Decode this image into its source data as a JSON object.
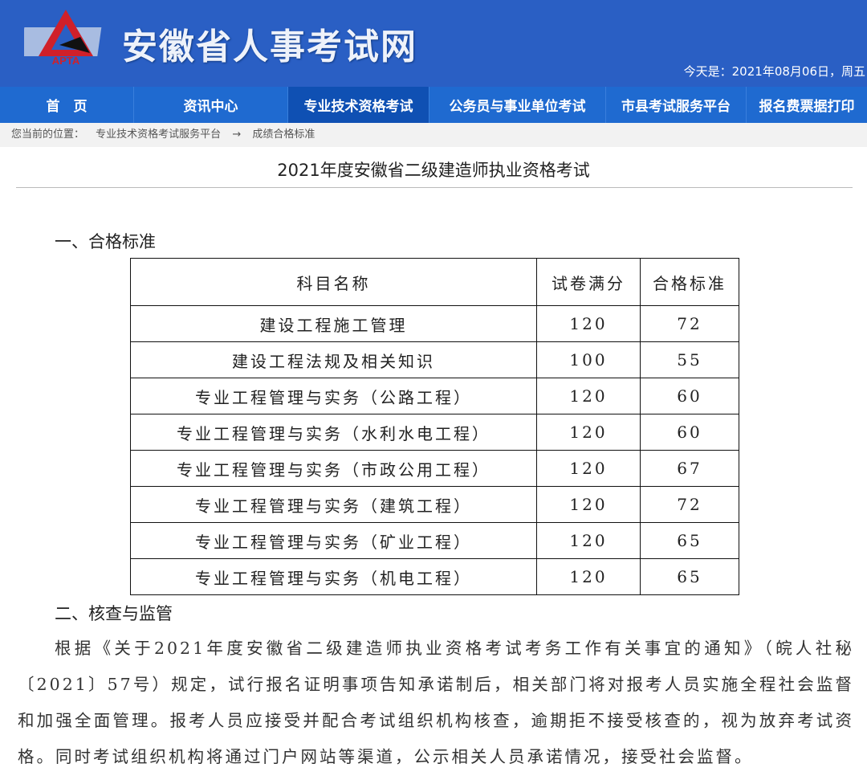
{
  "header": {
    "site_title": "安徽省人事考试网",
    "logo_text": "APTA",
    "date": "今天是：2021年08月06日，周五"
  },
  "nav": [
    {
      "label": "首　页"
    },
    {
      "label": "资讯中心"
    },
    {
      "label": "专业技术资格考试",
      "active": true
    },
    {
      "label": "公务员与事业单位考试"
    },
    {
      "label": "市县考试服务平台"
    },
    {
      "label": "报名费票据打印"
    }
  ],
  "breadcrumb": {
    "prefix": "您当前的位置：",
    "items": [
      "专业技术资格考试服务平台",
      "成绩合格标准"
    ],
    "separator": "→"
  },
  "page_title": "2021年度安徽省二级建造师执业资格考试",
  "section1": "一、合格标准",
  "table": {
    "headers": [
      "科目名称",
      "试卷满分",
      "合格标准"
    ],
    "rows": [
      [
        "建设工程施工管理",
        "120",
        "72"
      ],
      [
        "建设工程法规及相关知识",
        "100",
        "55"
      ],
      [
        "专业工程管理与实务（公路工程）",
        "120",
        "60"
      ],
      [
        "专业工程管理与实务（水利水电工程）",
        "120",
        "60"
      ],
      [
        "专业工程管理与实务（市政公用工程）",
        "120",
        "67"
      ],
      [
        "专业工程管理与实务（建筑工程）",
        "120",
        "72"
      ],
      [
        "专业工程管理与实务（矿业工程）",
        "120",
        "65"
      ],
      [
        "专业工程管理与实务（机电工程）",
        "120",
        "65"
      ]
    ]
  },
  "section2": "二、核查与监管",
  "paragraph": "根据《关于2021年度安徽省二级建造师执业资格考试考务工作有关事宜的通知》（皖人社秘〔2021〕57号）规定，试行报名证明事项告知承诺制后，相关部门将对报考人员实施全程社会监督和加强全面管理。报考人员应接受并配合考试组织机构核查，逾期拒不接受核查的，视为放弃考试资格。同时考试组织机构将通过门户网站等渠道，公示相关人员承诺情况，接受社会监督。"
}
